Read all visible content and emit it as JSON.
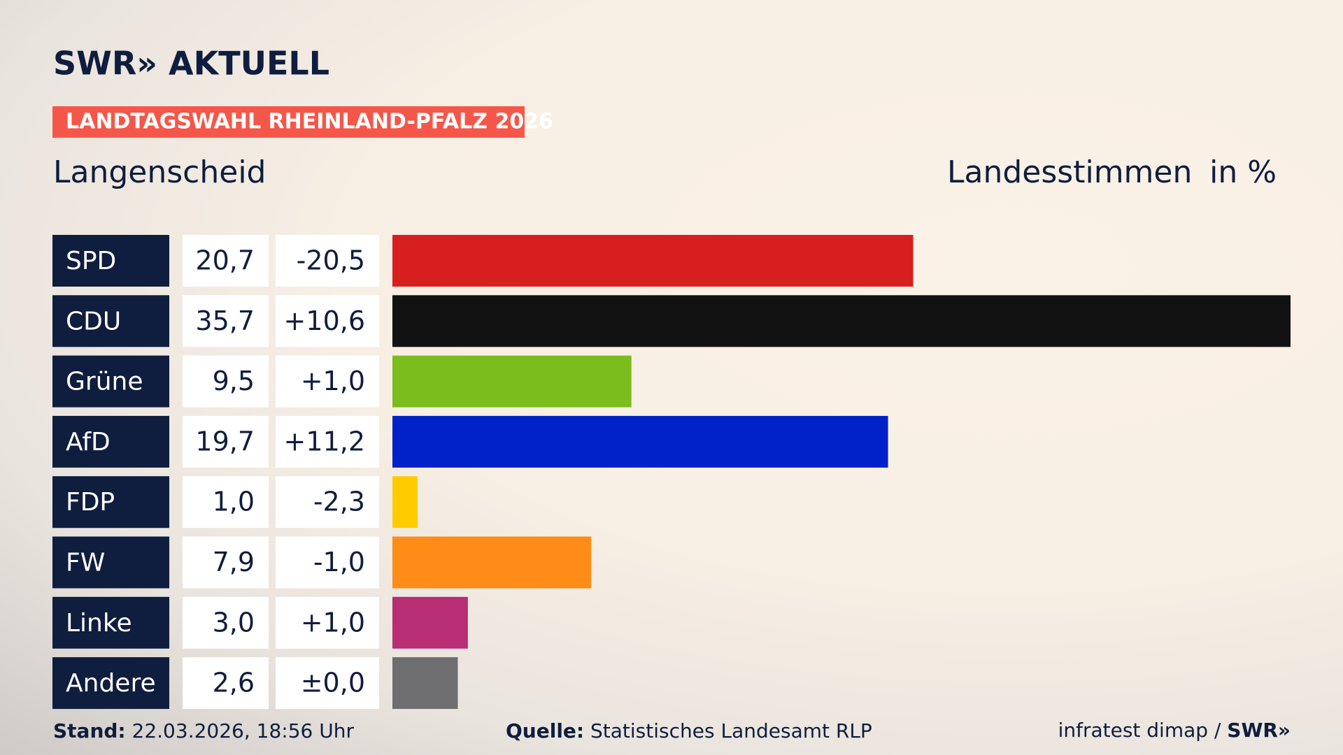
{
  "logo": "SWR» AKTUELL",
  "badge": "LANDTAGSWAHL RHEINLAND-PFALZ 2026",
  "chart_data": {
    "type": "bar",
    "title": "Langenscheid",
    "value_header": "Landesstimmen",
    "unit": "in %",
    "categories": [
      "SPD",
      "CDU",
      "Grüne",
      "AfD",
      "FDP",
      "FW",
      "Linke",
      "Andere"
    ],
    "values": [
      20.7,
      35.7,
      9.5,
      19.7,
      1.0,
      7.9,
      3.0,
      2.6
    ],
    "value_labels": [
      "20,7",
      "35,7",
      "9,5",
      "19,7",
      "1,0",
      "7,9",
      "3,0",
      "2,6"
    ],
    "changes": [
      "-20,5",
      "+10,6",
      "+1,0",
      "+11,2",
      "-2,3",
      "-1,0",
      "+1,0",
      "±0,0"
    ],
    "colors": [
      "#d71f1f",
      "#121212",
      "#7bbd1d",
      "#0022c8",
      "#ffcc00",
      "#ff8c17",
      "#b72e74",
      "#6e6e70"
    ],
    "ylim": [
      0,
      35.7
    ]
  },
  "footer": {
    "stand_label": "Stand:",
    "stand": "22.03.2026, 18:56 Uhr",
    "source_label": "Quelle:",
    "source": "Statistisches Landesamt RLP",
    "pollster": "infratest dimap /",
    "brand": "SWR»"
  }
}
